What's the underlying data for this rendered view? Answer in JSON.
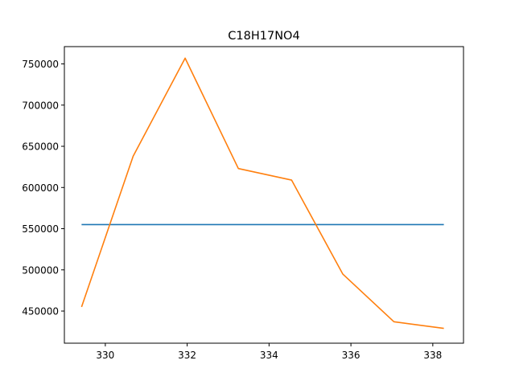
{
  "chart_data": {
    "type": "line",
    "title": "C18H17NO4",
    "xlabel": "",
    "ylabel": "",
    "xlim": [
      329.0,
      338.75
    ],
    "ylim": [
      411000,
      771000
    ],
    "grid": false,
    "legend": "none",
    "x_ticks": [
      330,
      332,
      334,
      336,
      338
    ],
    "x_tick_labels": [
      "330",
      "332",
      "334",
      "336",
      "338"
    ],
    "y_ticks": [
      450000,
      500000,
      550000,
      600000,
      650000,
      700000,
      750000
    ],
    "y_tick_labels": [
      "450000",
      "500000",
      "550000",
      "600000",
      "650000",
      "700000",
      "750000"
    ],
    "series": [
      {
        "color": "#1f77b4",
        "x": [
          329.42,
          338.27
        ],
        "y": [
          555000,
          555000
        ]
      },
      {
        "color": "#ff7f0e",
        "x": [
          329.42,
          330.68,
          331.95,
          333.25,
          334.55,
          335.8,
          337.05,
          338.27
        ],
        "y": [
          455000,
          638000,
          757000,
          623000,
          609000,
          495000,
          437000,
          429000
        ]
      }
    ]
  }
}
